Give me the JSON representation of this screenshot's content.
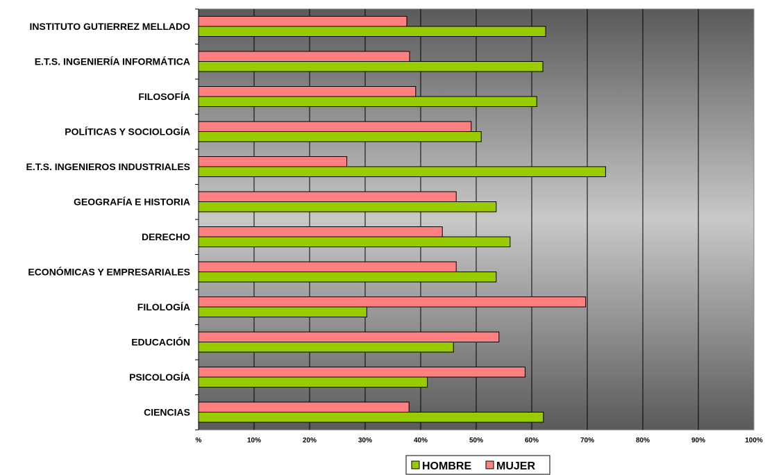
{
  "chart_data": {
    "type": "bar",
    "orientation": "horizontal",
    "categories": [
      "INSTITUTO GUTIERREZ MELLADO",
      "E.T.S. INGENIERÍA INFORMÁTICA",
      "FILOSOFÍA",
      "POLÍTICAS Y SOCIOLOGÍA",
      "E.T.S. INGENIEROS INDUSTRIALES",
      "GEOGRAFÍA E HISTORIA",
      "DERECHO",
      "ECONÓMICAS Y EMPRESARIALES",
      "FILOLOGÍA",
      "EDUCACIÓN",
      "PSICOLOGÍA",
      "CIENCIAS"
    ],
    "series": [
      {
        "name": "MUJER",
        "color": "#ff8080",
        "values": [
          37.5,
          38.0,
          39.1,
          49.1,
          26.7,
          46.4,
          43.9,
          46.4,
          69.7,
          54.1,
          58.8,
          37.9
        ]
      },
      {
        "name": "HOMBRE",
        "color": "#99cc00",
        "values": [
          62.5,
          62.0,
          60.9,
          50.9,
          73.3,
          53.6,
          56.1,
          53.6,
          30.3,
          45.9,
          41.2,
          62.1
        ]
      }
    ],
    "x_ticks": [
      "%",
      "10%",
      "20%",
      "30%",
      "40%",
      "50%",
      "60%",
      "70%",
      "80%",
      "90%",
      "100%"
    ],
    "xlim": [
      0,
      100
    ],
    "grid": true,
    "legend": {
      "position": "bottom",
      "entries": [
        {
          "label": "HOMBRE",
          "color": "#99cc00"
        },
        {
          "label": "MUJER",
          "color": "#ff8080"
        }
      ]
    }
  }
}
